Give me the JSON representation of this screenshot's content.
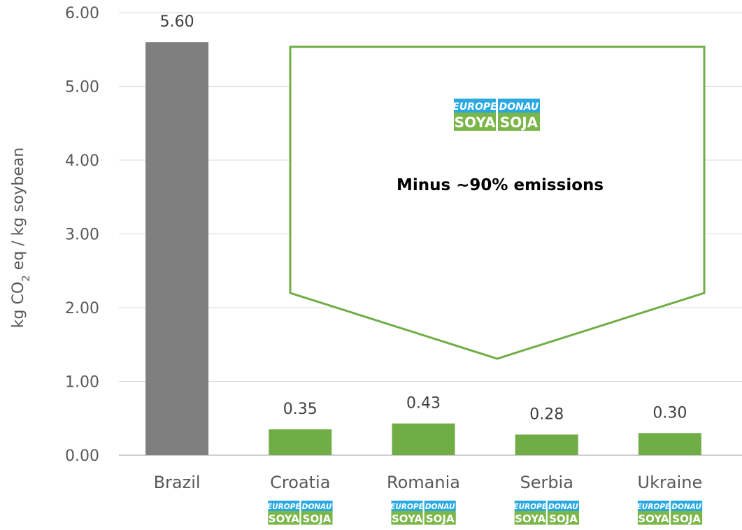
{
  "chart_data": {
    "type": "bar",
    "categories": [
      "Brazil",
      "Croatia",
      "Romania",
      "Serbia",
      "Ukraine"
    ],
    "values": [
      5.6,
      0.35,
      0.43,
      0.28,
      0.3
    ],
    "data_labels": [
      "5.60",
      "0.35",
      "0.43",
      "0.28",
      "0.30"
    ],
    "bar_colors": [
      "#7f7f7f",
      "#70ad47",
      "#70ad47",
      "#70ad47",
      "#70ad47"
    ],
    "ylabel": {
      "pre": "kg CO",
      "sub": "2",
      "post": " eq / kg soybean"
    },
    "ylim": [
      0,
      6
    ],
    "yticks": [
      "0.00",
      "1.00",
      "2.00",
      "3.00",
      "4.00",
      "5.00",
      "6.00"
    ],
    "grid": true,
    "annotation": "Minus ~90%  emissions",
    "annotation_color": "#70ad47",
    "logo": {
      "europe_top": "EUROPE",
      "europe_bottom": "SOYA",
      "donau_top": "DONAU",
      "donau_bottom": "SOJA",
      "top_color": "#2aa9e0",
      "bottom_color": "#7ab648"
    },
    "logo_under": [
      "Croatia",
      "Romania",
      "Serbia",
      "Ukraine"
    ]
  }
}
